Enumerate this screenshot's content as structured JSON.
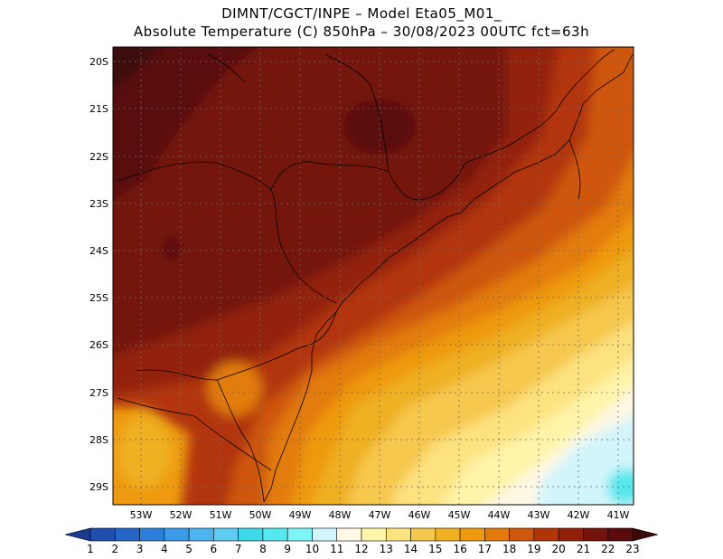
{
  "header": {
    "line1": "DIMNT/CGCT/INPE –  Model Eta05_M01_",
    "line2": "Absolute Temperature (C) 850hPa –  30/08/2023 00UTC fct=63h"
  },
  "map": {
    "lat_labels": [
      "20S",
      "21S",
      "22S",
      "23S",
      "24S",
      "25S",
      "26S",
      "27S",
      "28S",
      "29S"
    ],
    "lon_labels": [
      "53W",
      "52W",
      "51W",
      "50W",
      "49W",
      "48W",
      "47W",
      "46W",
      "45W",
      "44W",
      "43W",
      "42W",
      "41W"
    ],
    "lon_range": [
      -53.7,
      -40.6
    ],
    "lat_range": [
      -29.4,
      -19.8
    ],
    "grid": "dotted"
  },
  "colorbar": {
    "labels": [
      "1",
      "2",
      "3",
      "4",
      "5",
      "6",
      "7",
      "8",
      "9",
      "10",
      "11",
      "12",
      "13",
      "14",
      "15",
      "16",
      "17",
      "18",
      "19",
      "20",
      "21",
      "22",
      "23"
    ],
    "colors": [
      "#1a3a8f",
      "#1f4fae",
      "#2466c6",
      "#2b7fd9",
      "#3a9ae6",
      "#4db4ee",
      "#5fcbf2",
      "#3fd8e8",
      "#55e8ee",
      "#7cf6f6",
      "#d2f5fb",
      "#fff8e4",
      "#fff4a8",
      "#fde280",
      "#f6c84e",
      "#efb021",
      "#ee9a10",
      "#e27b0b",
      "#cf5708",
      "#b23507",
      "#932109",
      "#74130b",
      "#5a0b0b",
      "#3d0808"
    ]
  }
}
